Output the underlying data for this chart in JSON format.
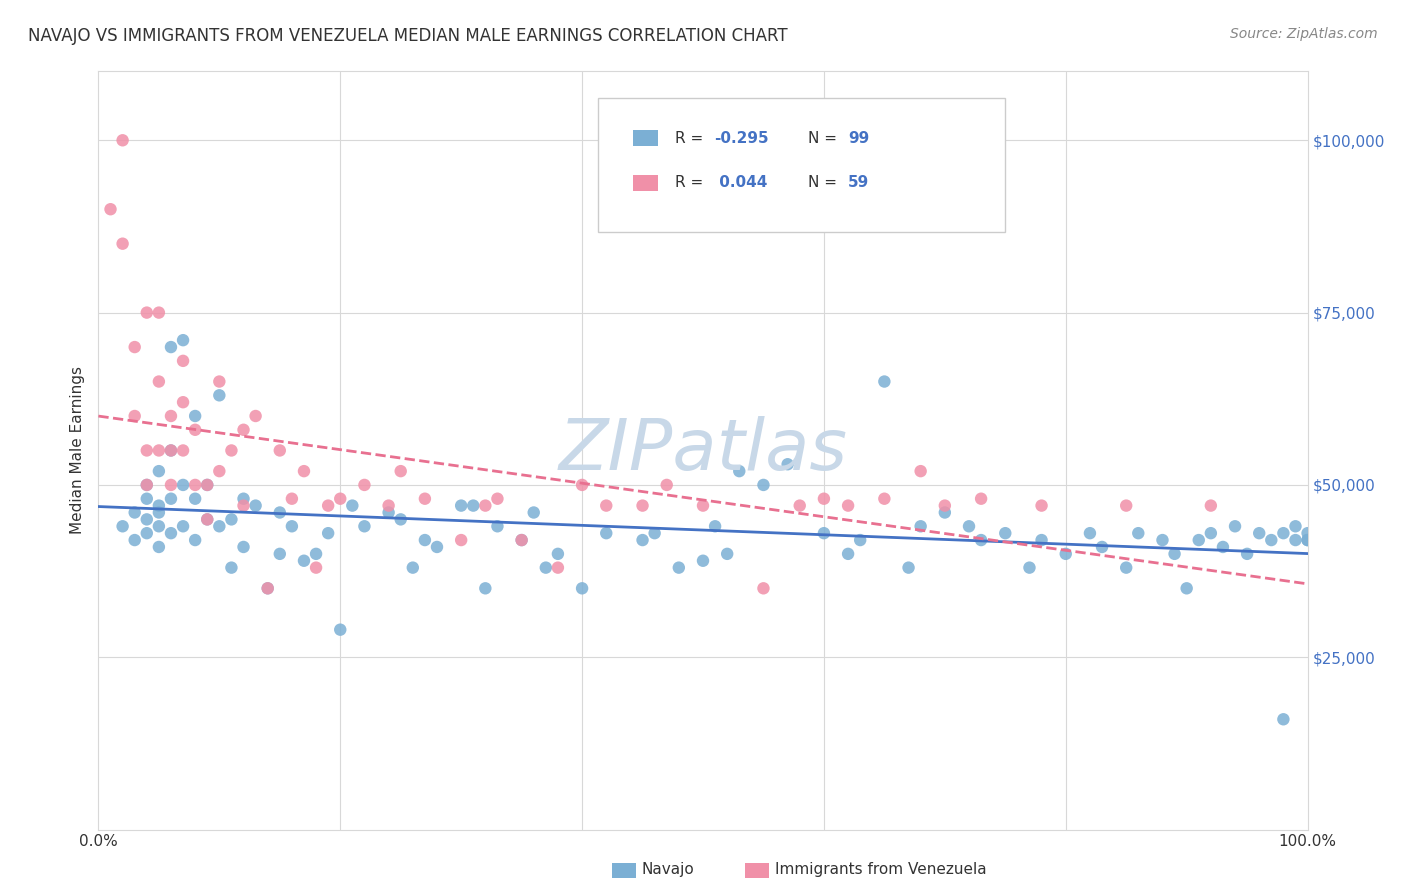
{
  "title": "NAVAJO VS IMMIGRANTS FROM VENEZUELA MEDIAN MALE EARNINGS CORRELATION CHART",
  "source": "Source: ZipAtlas.com",
  "ylabel": "Median Male Earnings",
  "ytick_labels": [
    "$25,000",
    "$50,000",
    "$75,000",
    "$100,000"
  ],
  "ytick_values": [
    25000,
    50000,
    75000,
    100000
  ],
  "ylim": [
    0,
    110000
  ],
  "xlim": [
    0.0,
    1.0
  ],
  "series1_label": "Navajo",
  "series2_label": "Immigrants from Venezuela",
  "series1_color": "#7bafd4",
  "series2_color": "#f090a8",
  "series1_line_color": "#4472c4",
  "series2_line_color": "#e87090",
  "background_color": "#ffffff",
  "grid_color": "#d8d8d8",
  "title_color": "#333333",
  "watermark": "ZIPatlas",
  "watermark_color": "#c8d8e8",
  "R1": -0.295,
  "N1": 99,
  "R2": 0.044,
  "N2": 59,
  "navajo_x": [
    0.02,
    0.03,
    0.03,
    0.04,
    0.04,
    0.04,
    0.04,
    0.05,
    0.05,
    0.05,
    0.05,
    0.05,
    0.06,
    0.06,
    0.06,
    0.06,
    0.07,
    0.07,
    0.07,
    0.08,
    0.08,
    0.08,
    0.09,
    0.09,
    0.1,
    0.1,
    0.11,
    0.11,
    0.12,
    0.12,
    0.13,
    0.14,
    0.15,
    0.15,
    0.16,
    0.17,
    0.18,
    0.19,
    0.2,
    0.21,
    0.22,
    0.24,
    0.25,
    0.26,
    0.27,
    0.28,
    0.3,
    0.31,
    0.32,
    0.33,
    0.35,
    0.36,
    0.37,
    0.38,
    0.4,
    0.42,
    0.45,
    0.46,
    0.48,
    0.5,
    0.51,
    0.52,
    0.53,
    0.55,
    0.57,
    0.6,
    0.62,
    0.63,
    0.65,
    0.67,
    0.68,
    0.7,
    0.72,
    0.73,
    0.75,
    0.77,
    0.78,
    0.8,
    0.82,
    0.83,
    0.85,
    0.86,
    0.88,
    0.89,
    0.9,
    0.91,
    0.92,
    0.93,
    0.94,
    0.95,
    0.96,
    0.97,
    0.98,
    0.98,
    0.99,
    0.99,
    1.0,
    1.0,
    1.0
  ],
  "navajo_y": [
    44000,
    46000,
    42000,
    48000,
    45000,
    50000,
    43000,
    52000,
    47000,
    44000,
    46000,
    41000,
    55000,
    48000,
    70000,
    43000,
    71000,
    50000,
    44000,
    60000,
    48000,
    42000,
    50000,
    45000,
    63000,
    44000,
    45000,
    38000,
    48000,
    41000,
    47000,
    35000,
    46000,
    40000,
    44000,
    39000,
    40000,
    43000,
    29000,
    47000,
    44000,
    46000,
    45000,
    38000,
    42000,
    41000,
    47000,
    47000,
    35000,
    44000,
    42000,
    46000,
    38000,
    40000,
    35000,
    43000,
    42000,
    43000,
    38000,
    39000,
    44000,
    40000,
    52000,
    50000,
    53000,
    43000,
    40000,
    42000,
    65000,
    38000,
    44000,
    46000,
    44000,
    42000,
    43000,
    38000,
    42000,
    40000,
    43000,
    41000,
    38000,
    43000,
    42000,
    40000,
    35000,
    42000,
    43000,
    41000,
    44000,
    40000,
    43000,
    42000,
    43000,
    16000,
    42000,
    44000,
    42000,
    43000,
    42000
  ],
  "venez_x": [
    0.01,
    0.02,
    0.02,
    0.03,
    0.03,
    0.04,
    0.04,
    0.04,
    0.05,
    0.05,
    0.05,
    0.06,
    0.06,
    0.06,
    0.07,
    0.07,
    0.07,
    0.08,
    0.08,
    0.09,
    0.09,
    0.1,
    0.1,
    0.11,
    0.12,
    0.12,
    0.13,
    0.14,
    0.15,
    0.16,
    0.17,
    0.18,
    0.19,
    0.2,
    0.22,
    0.24,
    0.25,
    0.27,
    0.3,
    0.32,
    0.33,
    0.35,
    0.38,
    0.4,
    0.42,
    0.45,
    0.47,
    0.5,
    0.55,
    0.58,
    0.6,
    0.62,
    0.65,
    0.68,
    0.7,
    0.73,
    0.78,
    0.85,
    0.92
  ],
  "venez_y": [
    90000,
    100000,
    85000,
    60000,
    70000,
    75000,
    55000,
    50000,
    75000,
    65000,
    55000,
    60000,
    50000,
    55000,
    62000,
    68000,
    55000,
    58000,
    50000,
    50000,
    45000,
    65000,
    52000,
    55000,
    58000,
    47000,
    60000,
    35000,
    55000,
    48000,
    52000,
    38000,
    47000,
    48000,
    50000,
    47000,
    52000,
    48000,
    42000,
    47000,
    48000,
    42000,
    38000,
    50000,
    47000,
    47000,
    50000,
    47000,
    35000,
    47000,
    48000,
    47000,
    48000,
    52000,
    47000,
    48000,
    47000,
    47000,
    47000
  ]
}
